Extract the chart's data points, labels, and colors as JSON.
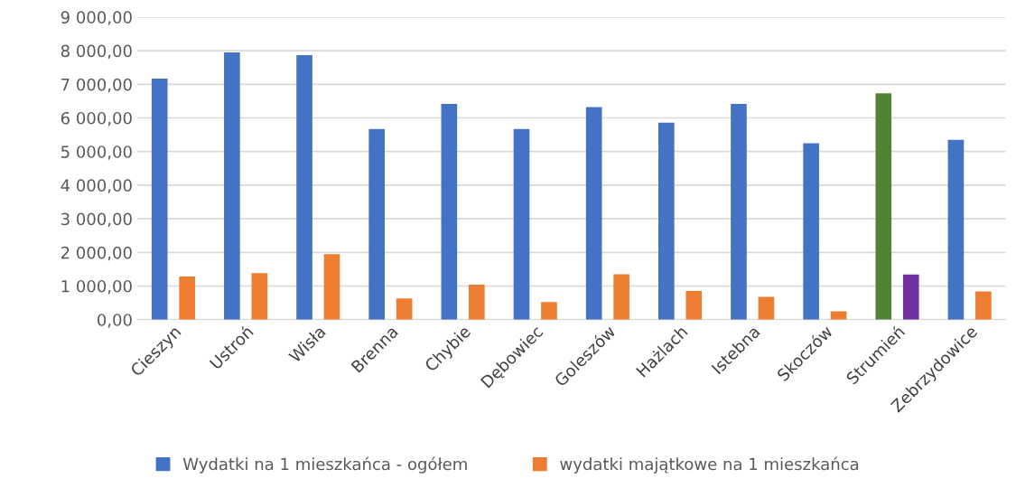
{
  "chart_data": {
    "type": "bar",
    "categories": [
      "Cieszyn",
      "Ustroń",
      "Wisła",
      "Brenna",
      "Chybie",
      "Dębowiec",
      "Goleszów",
      "Hażlach",
      "Istebna",
      "Skoczów",
      "Strumień",
      "Zebrzydowice"
    ],
    "series": [
      {
        "name": "Wydatki na 1 mieszkańca - ogółem",
        "color": "#4472c4",
        "colors": [
          "#4472c4",
          "#4472c4",
          "#4472c4",
          "#4472c4",
          "#4472c4",
          "#4472c4",
          "#4472c4",
          "#4472c4",
          "#4472c4",
          "#4472c4",
          "#548235",
          "#4472c4"
        ],
        "values": [
          7170,
          7950,
          7870,
          5670,
          6420,
          5670,
          6320,
          5860,
          6420,
          5250,
          6730,
          5350
        ]
      },
      {
        "name": "wydatki majątkowe na 1 mieszkańca",
        "color": "#ed7d31",
        "colors": [
          "#ed7d31",
          "#ed7d31",
          "#ed7d31",
          "#ed7d31",
          "#ed7d31",
          "#ed7d31",
          "#ed7d31",
          "#ed7d31",
          "#ed7d31",
          "#ed7d31",
          "#7030a0",
          "#ed7d31"
        ],
        "values": [
          1280,
          1380,
          1950,
          630,
          1040,
          520,
          1350,
          850,
          680,
          250,
          1340,
          840
        ]
      }
    ],
    "ylim": [
      0,
      9000
    ],
    "yticks": [
      {
        "value": 0,
        "label": "0,00"
      },
      {
        "value": 1000,
        "label": "1 000,00"
      },
      {
        "value": 2000,
        "label": "2 000,00"
      },
      {
        "value": 3000,
        "label": "3 000,00"
      },
      {
        "value": 4000,
        "label": "4 000,00"
      },
      {
        "value": 5000,
        "label": "5 000,00"
      },
      {
        "value": 6000,
        "label": "6 000,00"
      },
      {
        "value": 7000,
        "label": "7 000,00"
      },
      {
        "value": 8000,
        "label": "8 000,00"
      },
      {
        "value": 9000,
        "label": "9 000,00"
      }
    ],
    "grid": "y",
    "legend": "bottom"
  }
}
